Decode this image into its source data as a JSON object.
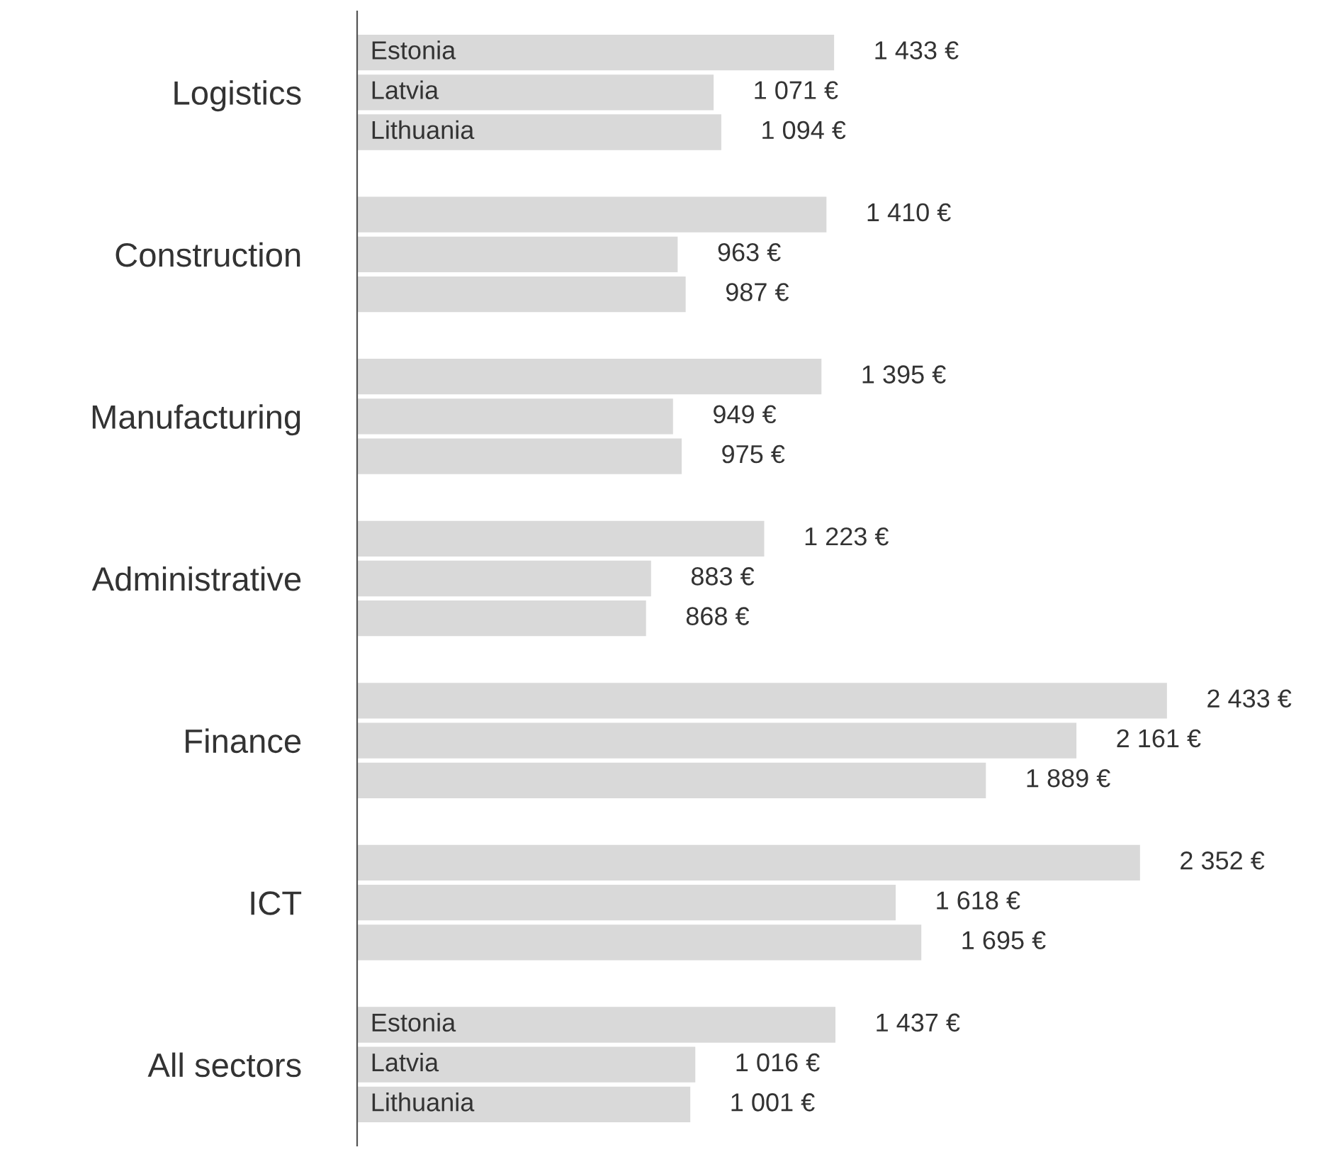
{
  "chart_data": {
    "type": "bar",
    "orientation": "horizontal",
    "categories": [
      "Logistics",
      "Construction",
      "Manufacturing",
      "Administrative",
      "Finance",
      "ICT",
      "All sectors"
    ],
    "series": [
      {
        "name": "Estonia",
        "color": "#d9d9d9",
        "values": [
          1433,
          1410,
          1395,
          1223,
          2433,
          2352,
          1437
        ],
        "value_labels": [
          "1 433 €",
          "1 410 €",
          "1 395 €",
          "1 223 €",
          "2 433 €",
          "2 352 €",
          "1 437 €"
        ]
      },
      {
        "name": "Latvia",
        "color": "#d9d9d9",
        "values": [
          1071,
          963,
          949,
          883,
          2161,
          1618,
          1016
        ],
        "value_labels": [
          "1 071 €",
          "963 €",
          "949 €",
          "883 €",
          "2 161 €",
          "1 618 €",
          "1 016 €"
        ]
      },
      {
        "name": "Lithuania",
        "color": "#d9d9d9",
        "values": [
          1094,
          987,
          975,
          868,
          1889,
          1695,
          1001
        ],
        "value_labels": [
          "1 094 €",
          "987 €",
          "975 €",
          "868 €",
          "1 889 €",
          "1 695 €",
          "1 001 €"
        ]
      }
    ],
    "tick_labels": "y",
    "legend": false,
    "grid": false
  }
}
